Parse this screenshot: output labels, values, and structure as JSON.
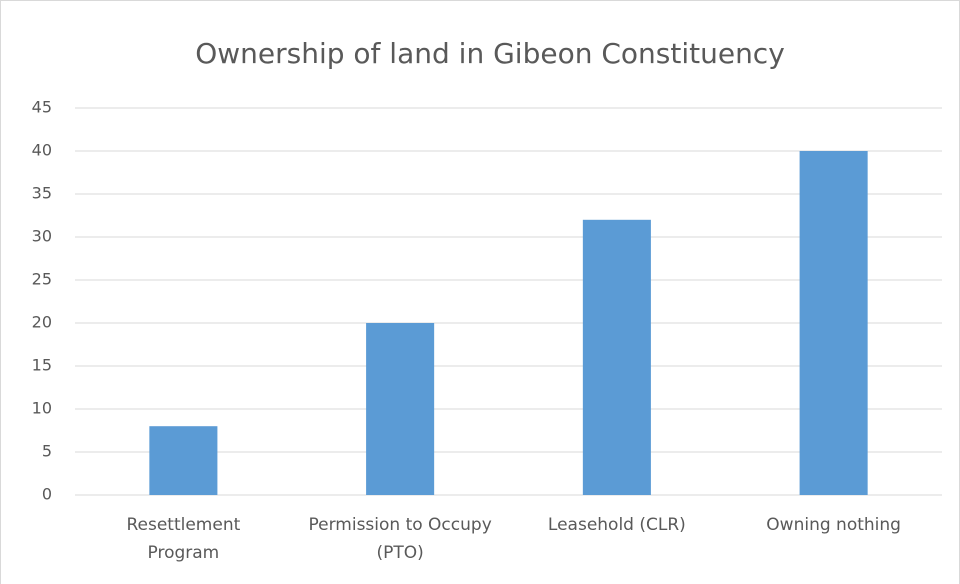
{
  "chart_data": {
    "type": "bar",
    "title": "Ownership of land in Gibeon Constituency",
    "categories": [
      "Resettlement Program",
      "Permission to Occupy (PTO)",
      "Leasehold (CLR)",
      "Owning nothing"
    ],
    "values": [
      8,
      20,
      32,
      40
    ],
    "color": "#5b9bd5",
    "ylim": [
      0,
      45
    ],
    "yticks": [
      0,
      5,
      10,
      15,
      20,
      25,
      30,
      35,
      40,
      45
    ],
    "grid": true
  }
}
